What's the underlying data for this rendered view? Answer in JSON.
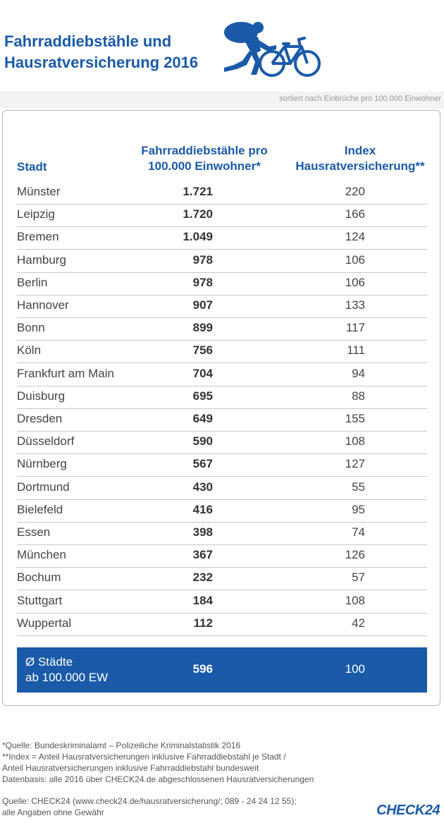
{
  "title": {
    "line1": "Fahrraddiebstähle und",
    "line2": "Hausratversicherung 2016"
  },
  "logo_icon": "thief-with-bicycle-icon",
  "sort_note": "sortiert nach Einbrüche pro 100.000 Einwohner",
  "brand_color": "#1a5aa8",
  "chart_data": {
    "type": "table",
    "columns": {
      "city": "Stadt",
      "theft_line1": "Fahrraddiebstähle pro",
      "theft_line2": "100.000 Einwohner*",
      "index_line1": "Index",
      "index_line2": "Hausratversicherung**"
    },
    "rows": [
      {
        "city": "Münster",
        "theft": "1.721",
        "index": "220"
      },
      {
        "city": "Leipzig",
        "theft": "1.720",
        "index": "166"
      },
      {
        "city": "Bremen",
        "theft": "1.049",
        "index": "124"
      },
      {
        "city": "Hamburg",
        "theft": "978",
        "index": "106"
      },
      {
        "city": "Berlin",
        "theft": "978",
        "index": "106"
      },
      {
        "city": "Hannover",
        "theft": "907",
        "index": "133"
      },
      {
        "city": "Bonn",
        "theft": "899",
        "index": "117"
      },
      {
        "city": "Köln",
        "theft": "756",
        "index": "111"
      },
      {
        "city": "Frankfurt am Main",
        "theft": "704",
        "index": "94"
      },
      {
        "city": "Duisburg",
        "theft": "695",
        "index": "88"
      },
      {
        "city": "Dresden",
        "theft": "649",
        "index": "155"
      },
      {
        "city": "Düsseldorf",
        "theft": "590",
        "index": "108"
      },
      {
        "city": "Nürnberg",
        "theft": "567",
        "index": "127"
      },
      {
        "city": "Dortmund",
        "theft": "430",
        "index": "55"
      },
      {
        "city": "Bielefeld",
        "theft": "416",
        "index": "95"
      },
      {
        "city": "Essen",
        "theft": "398",
        "index": "74"
      },
      {
        "city": "München",
        "theft": "367",
        "index": "126"
      },
      {
        "city": "Bochum",
        "theft": "232",
        "index": "57"
      },
      {
        "city": "Stuttgart",
        "theft": "184",
        "index": "108"
      },
      {
        "city": "Wuppertal",
        "theft": "112",
        "index": "42"
      }
    ],
    "average": {
      "label_line1": "Ø Städte",
      "label_line2": "ab 100.000 EW",
      "theft": "596",
      "index": "100"
    }
  },
  "footnotes": {
    "source1": "*Quelle: Bundeskriminalamt – Polizeiliche Kriminalstatistik 2016",
    "index_def1": "**Index = Anteil Hausratversicherungen inklusive Fahrraddiebstahl je Stadt /",
    "index_def2": "Anteil Hausratversicherungen inklusive Fahrraddiebstahl bundesweit",
    "basis": "Datenbasis: alle 2016 über CHECK24.de abgeschlossenen Hausratversicherungen",
    "source2": "Quelle: CHECK24 (www.check24.de/hausratversicherung/; 089 - 24 24 12 55);",
    "disclaimer": "alle Angaben ohne Gewähr"
  },
  "brand": "CHECK24"
}
